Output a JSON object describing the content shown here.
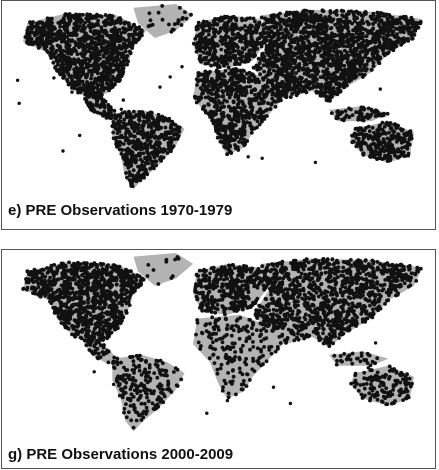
{
  "panels": [
    {
      "caption": "e) PRE Observations 1970-1979",
      "land_color": "#b3b3b3",
      "station_color": "#111111",
      "density": {
        "north_america": 0.95,
        "central_america": 0.8,
        "south_america": 0.75,
        "europe": 0.95,
        "asia": 0.9,
        "africa": 0.7,
        "australia": 0.85,
        "islands": 0.6,
        "greenland": 0.1
      }
    },
    {
      "caption": "g) PRE Observations 2000-2009",
      "land_color": "#b3b3b3",
      "station_color": "#111111",
      "density": {
        "north_america": 0.85,
        "central_america": 0.35,
        "south_america": 0.3,
        "europe": 0.8,
        "asia": 0.65,
        "africa": 0.2,
        "australia": 0.45,
        "islands": 0.3,
        "greenland": 0.05
      }
    }
  ]
}
